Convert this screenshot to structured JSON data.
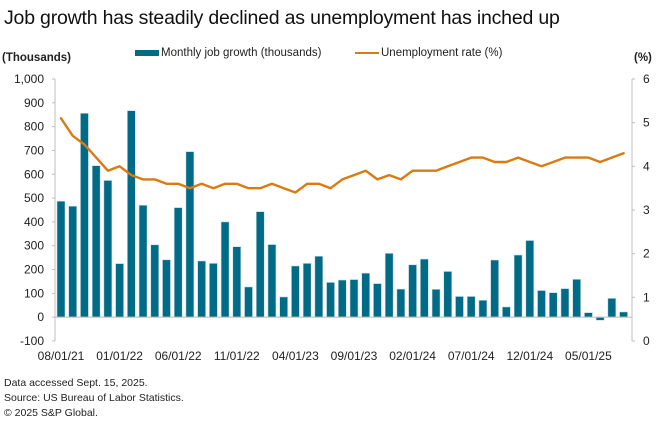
{
  "title": "Job growth has steadily declined as unemployment has inched up",
  "colors": {
    "bars": "#006b86",
    "line": "#d97b12",
    "axis": "#bfbfbf",
    "text": "#222222"
  },
  "chart_data": {
    "type": "bar+line",
    "title": "Job growth has steadily declined as unemployment has inched up",
    "left_axis_label": "(Thousands)",
    "right_axis_label": "(%)",
    "legend_position": "top-center",
    "grid": false,
    "left_ylim": [
      -100,
      1000
    ],
    "left_yticks": [
      -100,
      0,
      100,
      200,
      300,
      400,
      500,
      600,
      700,
      800,
      900,
      1000
    ],
    "left_ytick_labels": [
      "-100",
      "0",
      "100",
      "200",
      "300",
      "400",
      "500",
      "600",
      "700",
      "800",
      "900",
      "1,000"
    ],
    "right_ylim": [
      0,
      6
    ],
    "right_yticks": [
      0,
      1,
      2,
      3,
      4,
      5,
      6
    ],
    "right_ytick_labels": [
      "0",
      "1",
      "2",
      "3",
      "4",
      "5",
      "6"
    ],
    "x_tick_labels": [
      "08/01/21",
      "01/01/22",
      "06/01/22",
      "11/01/22",
      "04/01/23",
      "09/01/23",
      "02/01/24",
      "07/01/24",
      "12/01/24",
      "05/01/25"
    ],
    "x_tick_every": 5,
    "x": [
      "08/01/21",
      "09/01/21",
      "10/01/21",
      "11/01/21",
      "12/01/21",
      "01/01/22",
      "02/01/22",
      "03/01/22",
      "04/01/22",
      "05/01/22",
      "06/01/22",
      "07/01/22",
      "08/01/22",
      "09/01/22",
      "10/01/22",
      "11/01/22",
      "12/01/22",
      "01/01/23",
      "02/01/23",
      "03/01/23",
      "04/01/23",
      "05/01/23",
      "06/01/23",
      "07/01/23",
      "08/01/23",
      "09/01/23",
      "10/01/23",
      "11/01/23",
      "12/01/23",
      "01/01/24",
      "02/01/24",
      "03/01/24",
      "04/01/24",
      "05/01/24",
      "06/01/24",
      "07/01/24",
      "08/01/24",
      "09/01/24",
      "10/01/24",
      "11/01/24",
      "12/01/24",
      "01/01/25",
      "02/01/25",
      "03/01/25",
      "04/01/25",
      "05/01/25",
      "06/01/25",
      "07/01/25",
      "08/01/25"
    ],
    "series": [
      {
        "name": "Monthly job growth (thousands)",
        "type": "bar",
        "axis": "left",
        "values": [
          487,
          466,
          856,
          636,
          574,
          225,
          867,
          470,
          304,
          241,
          460,
          695,
          236,
          226,
          400,
          296,
          127,
          443,
          305,
          85,
          215,
          226,
          256,
          146,
          156,
          158,
          185,
          141,
          268,
          118,
          220,
          244,
          117,
          192,
          87,
          87,
          71,
          240,
          43,
          261,
          322,
          112,
          103,
          120,
          159,
          19,
          -13,
          79,
          22
        ]
      },
      {
        "name": "Unemployment rate (%)",
        "type": "line",
        "axis": "right",
        "values": [
          5.1,
          4.7,
          4.5,
          4.2,
          3.9,
          4.0,
          3.8,
          3.7,
          3.7,
          3.6,
          3.6,
          3.5,
          3.6,
          3.5,
          3.6,
          3.6,
          3.5,
          3.5,
          3.6,
          3.5,
          3.4,
          3.6,
          3.6,
          3.5,
          3.7,
          3.8,
          3.9,
          3.7,
          3.8,
          3.7,
          3.9,
          3.9,
          3.9,
          4.0,
          4.1,
          4.2,
          4.2,
          4.1,
          4.1,
          4.2,
          4.1,
          4.0,
          4.1,
          4.2,
          4.2,
          4.2,
          4.1,
          4.2,
          4.3
        ]
      }
    ]
  },
  "footer": {
    "note": "Data accessed Sept. 15, 2025.",
    "source": "Source: US Bureau of Labor Statistics.",
    "copyright": "© 2025 S&P Global."
  }
}
